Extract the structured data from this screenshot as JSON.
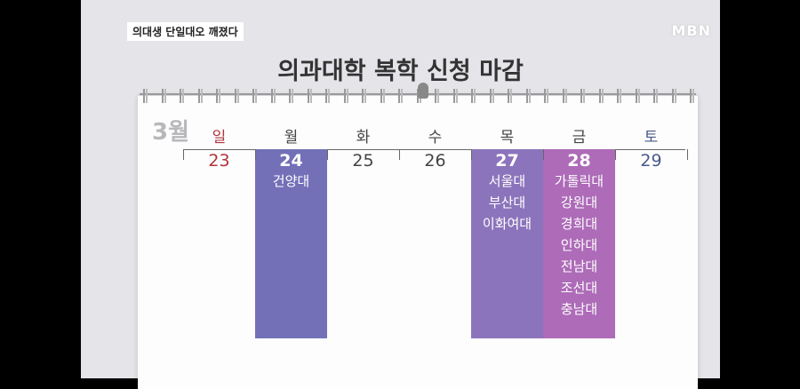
{
  "caption": "의대생 단일대오 깨졌다",
  "logo": "MBN",
  "title": "의과대학 복학 신청 마감",
  "month": "3월",
  "colors": {
    "mon": "#7370b8",
    "thu": "#8c74bc",
    "fri": "#ad6bb8",
    "sun": "#b0343c",
    "sat": "#4a5a8a"
  },
  "days": [
    {
      "weekday": "일",
      "date": "23",
      "schools": []
    },
    {
      "weekday": "월",
      "date": "24",
      "schools": [
        "건양대"
      ]
    },
    {
      "weekday": "화",
      "date": "25",
      "schools": []
    },
    {
      "weekday": "수",
      "date": "26",
      "schools": []
    },
    {
      "weekday": "목",
      "date": "27",
      "schools": [
        "서울대",
        "부산대",
        "이화여대"
      ]
    },
    {
      "weekday": "금",
      "date": "28",
      "schools": [
        "가톨릭대",
        "강원대",
        "경희대",
        "인하대",
        "전남대",
        "조선대",
        "충남대"
      ]
    },
    {
      "weekday": "토",
      "date": "29",
      "schools": []
    }
  ]
}
